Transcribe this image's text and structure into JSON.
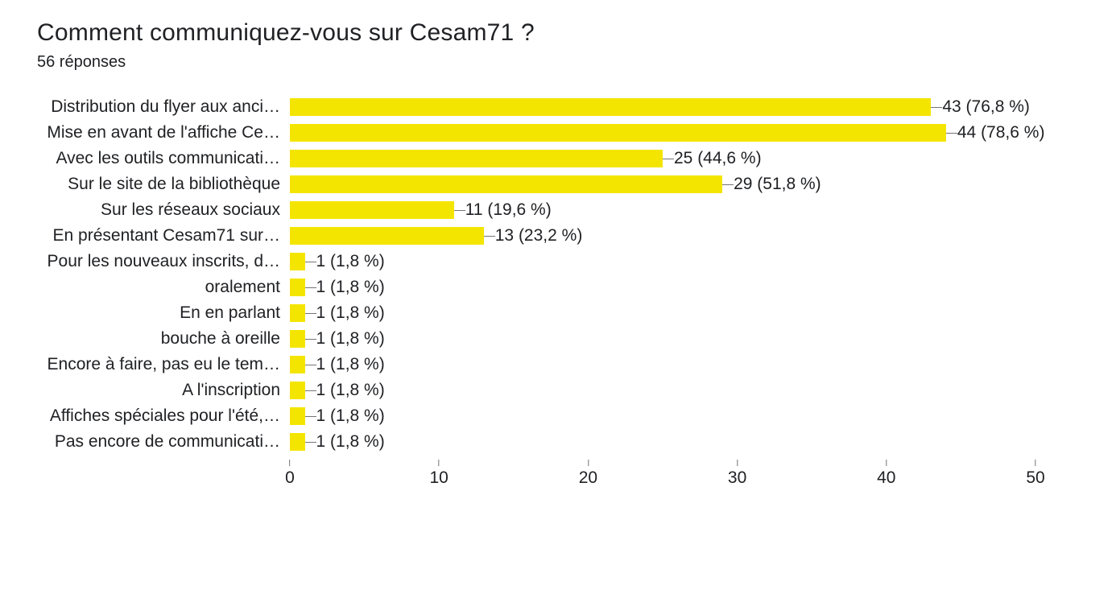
{
  "title": "Comment communiquez-vous sur Cesam71 ?",
  "subtitle": "56 réponses",
  "chart": {
    "type": "bar",
    "orientation": "horizontal",
    "xmax": 50,
    "xticks": [
      0,
      10,
      20,
      30,
      40,
      50
    ],
    "bar_color": "#f4e500",
    "tick_color": "#757575",
    "label_fontsize": 21,
    "title_fontsize": 30,
    "background_color": "#ffffff",
    "rows": [
      {
        "label": "Distribution du flyer aux anci…",
        "value": 43,
        "value_label": "43 (76,8 %)"
      },
      {
        "label": "Mise en avant de l'affiche Ce…",
        "value": 44,
        "value_label": "44 (78,6 %)"
      },
      {
        "label": "Avec les outils communicati…",
        "value": 25,
        "value_label": "25 (44,6 %)"
      },
      {
        "label": "Sur le site de la bibliothèque",
        "value": 29,
        "value_label": "29 (51,8 %)"
      },
      {
        "label": "Sur les réseaux sociaux",
        "value": 11,
        "value_label": "11 (19,6 %)"
      },
      {
        "label": "En présentant Cesam71 sur…",
        "value": 13,
        "value_label": "13 (23,2 %)"
      },
      {
        "label": "Pour les nouveaux inscrits, d…",
        "value": 1,
        "value_label": "1 (1,8 %)"
      },
      {
        "label": "oralement",
        "value": 1,
        "value_label": "1 (1,8 %)"
      },
      {
        "label": "En en parlant",
        "value": 1,
        "value_label": "1 (1,8 %)"
      },
      {
        "label": "bouche à oreille",
        "value": 1,
        "value_label": "1 (1,8 %)"
      },
      {
        "label": "Encore à faire, pas eu le tem…",
        "value": 1,
        "value_label": "1 (1,8 %)"
      },
      {
        "label": "A l'inscription",
        "value": 1,
        "value_label": "1 (1,8 %)"
      },
      {
        "label": "Affiches spéciales pour l'été,…",
        "value": 1,
        "value_label": "1 (1,8 %)"
      },
      {
        "label": "Pas encore de communicati…",
        "value": 1,
        "value_label": "1 (1,8 %)"
      }
    ]
  }
}
